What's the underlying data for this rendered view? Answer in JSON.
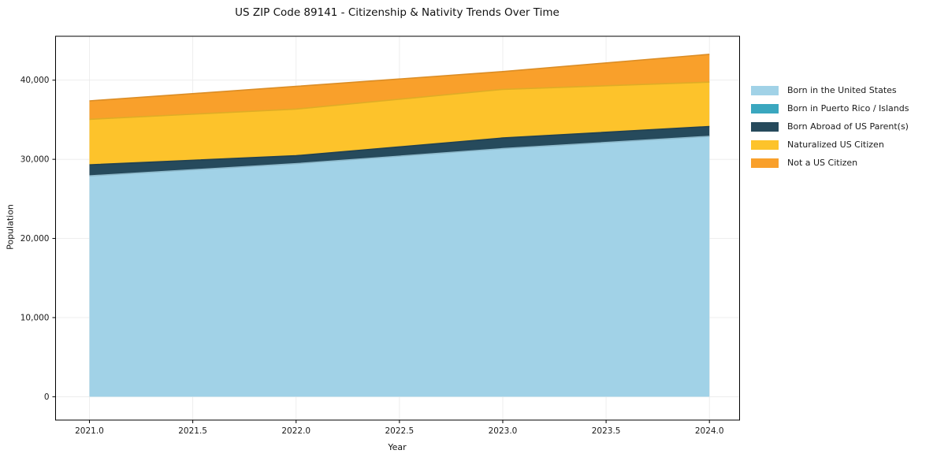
{
  "chart_data": {
    "type": "area",
    "stacked": true,
    "title": "US ZIP Code 89141 - Citizenship & Nativity Trends Over Time",
    "xlabel": "Year",
    "ylabel": "Population",
    "x": [
      2021,
      2022,
      2023,
      2024
    ],
    "series": [
      {
        "name": "Born in the United States",
        "color": "#a1d2e7",
        "values": [
          27900,
          29450,
          31350,
          32900
        ]
      },
      {
        "name": "Born in Puerto Rico / Islands",
        "color": "#3aa7bf",
        "values": [
          0,
          0,
          0,
          0
        ]
      },
      {
        "name": "Born Abroad of US Parent(s)",
        "color": "#264a5c",
        "values": [
          1400,
          1000,
          1340,
          1250
        ]
      },
      {
        "name": "Naturalized US Citizen",
        "color": "#fdc32b",
        "values": [
          5750,
          5900,
          6150,
          5600
        ]
      },
      {
        "name": "Not a US Citizen",
        "color": "#f9a02b",
        "values": [
          2330,
          2870,
          2250,
          3520
        ]
      }
    ],
    "x_tick_labels": [
      "2021.0",
      "2021.5",
      "2022.0",
      "2022.5",
      "2023.0",
      "2023.5",
      "2024.0"
    ],
    "x_tick_values": [
      2021,
      2021.5,
      2022,
      2022.5,
      2023,
      2023.5,
      2024
    ],
    "y_tick_labels": [
      "0",
      "10,000",
      "20,000",
      "30,000",
      "40,000"
    ],
    "y_tick_values": [
      0,
      10000,
      20000,
      30000,
      40000
    ],
    "xlim": [
      2020.836,
      2024.146
    ],
    "ylim": [
      -2950,
      45550
    ],
    "grid": true,
    "grid_color": "#ececec",
    "spine_color": "#000000",
    "legend_position": "right",
    "legend_frame": false
  }
}
